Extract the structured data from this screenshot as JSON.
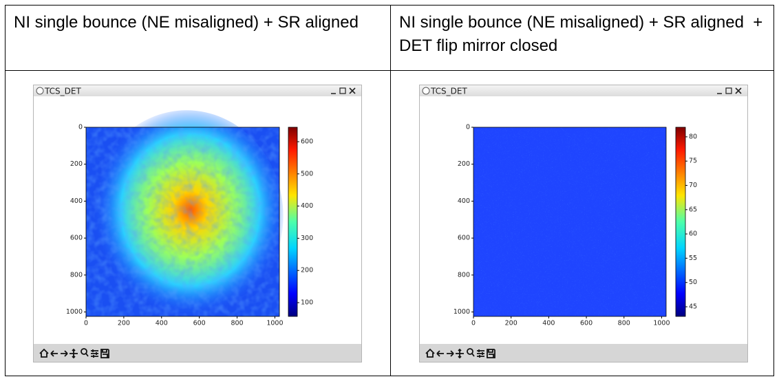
{
  "table": {
    "header": [
      "NI single bounce (NE misaligned) + SR aligned",
      "NI single bounce (NE misaligned) + SR aligned  + DET flip mirror closed"
    ],
    "windows": [
      {
        "title": "TCS_DET",
        "x_ticks": [
          0,
          200,
          400,
          600,
          800,
          1000
        ],
        "y_ticks": [
          0,
          200,
          400,
          600,
          800,
          1000
        ],
        "colorbar_ticks": [
          100,
          200,
          300,
          400,
          500,
          600
        ]
      },
      {
        "title": "TCS_DET",
        "x_ticks": [
          0,
          200,
          400,
          600,
          800,
          1000
        ],
        "y_ticks": [
          0,
          200,
          400,
          600,
          800,
          1000
        ],
        "colorbar_ticks": [
          45,
          50,
          55,
          60,
          65,
          70,
          75,
          80
        ]
      }
    ]
  }
}
